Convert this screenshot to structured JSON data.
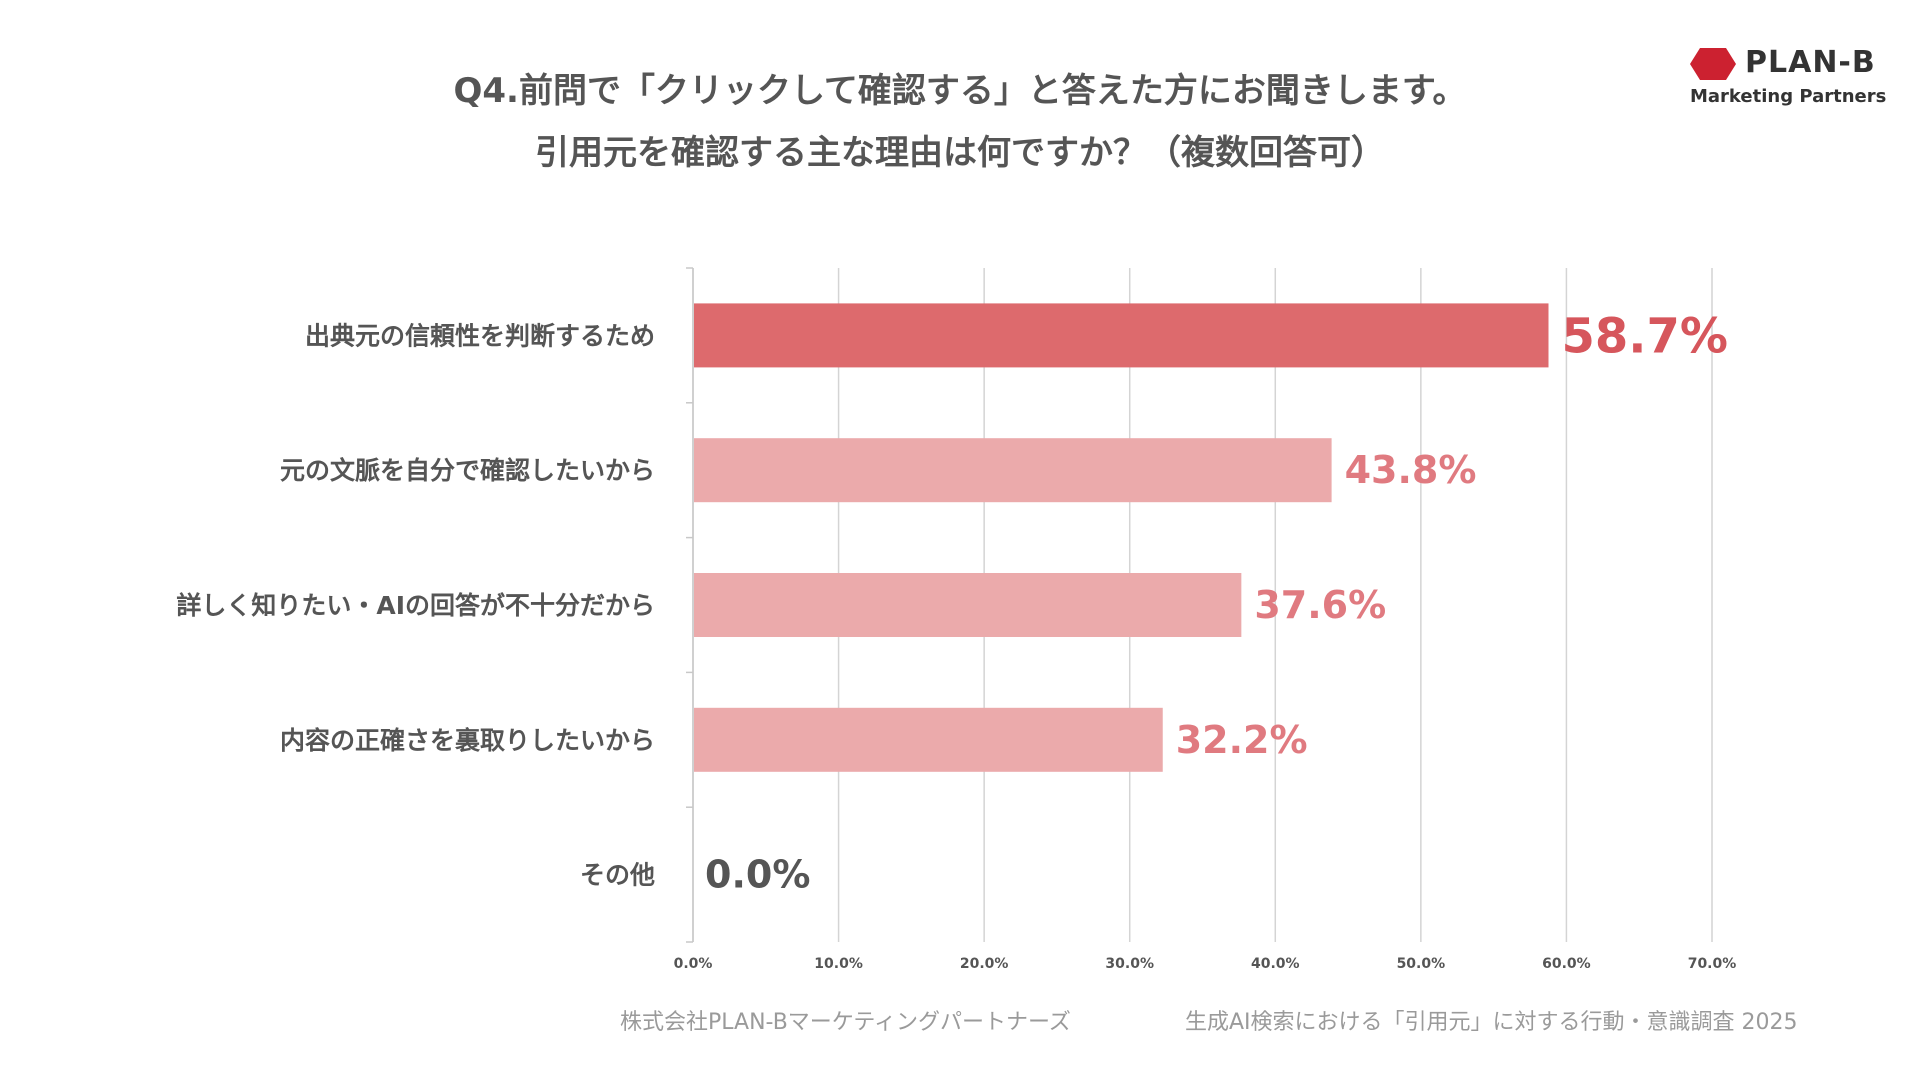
{
  "title_line1": "Q4.前問で「クリックして確認する」と答えた方にお聞きします。",
  "title_line2": "引用元を確認する主な理由は何ですか？（複数回答可）",
  "logo": {
    "name": "PLAN-B",
    "sub": "Marketing Partners",
    "color": "#cc2130"
  },
  "footer": {
    "left": "株式会社PLAN-Bマーケティングパートナーズ",
    "right": "生成AI検索における「引用元」に対する行動・意識調査 2025"
  },
  "colors": {
    "highlight": "#dd6a6d",
    "normal": "#ebaaab",
    "highlight_text": "#d6565c",
    "normal_text": "#e07a80",
    "zero_text": "#555555"
  },
  "chart_data": {
    "type": "bar",
    "orientation": "horizontal",
    "categories": [
      "出典元の信頼性を判断するため",
      "元の文脈を自分で確認したいから",
      "詳しく知りたい・AIの回答が不十分だから",
      "内容の正確さを裏取りしたいから",
      "その他"
    ],
    "values": [
      58.7,
      43.8,
      37.6,
      32.2,
      0.0
    ],
    "value_labels": [
      "58.7%",
      "43.8%",
      "37.6%",
      "32.2%",
      "0.0%"
    ],
    "xlim": [
      0,
      70
    ],
    "xticks": [
      "0.0%",
      "10.0%",
      "20.0%",
      "30.0%",
      "40.0%",
      "50.0%",
      "60.0%",
      "70.0%"
    ],
    "grid": true,
    "title": "Q4.前問で「クリックして確認する」と答えた方にお聞きします。引用元を確認する主な理由は何ですか？（複数回答可）"
  }
}
